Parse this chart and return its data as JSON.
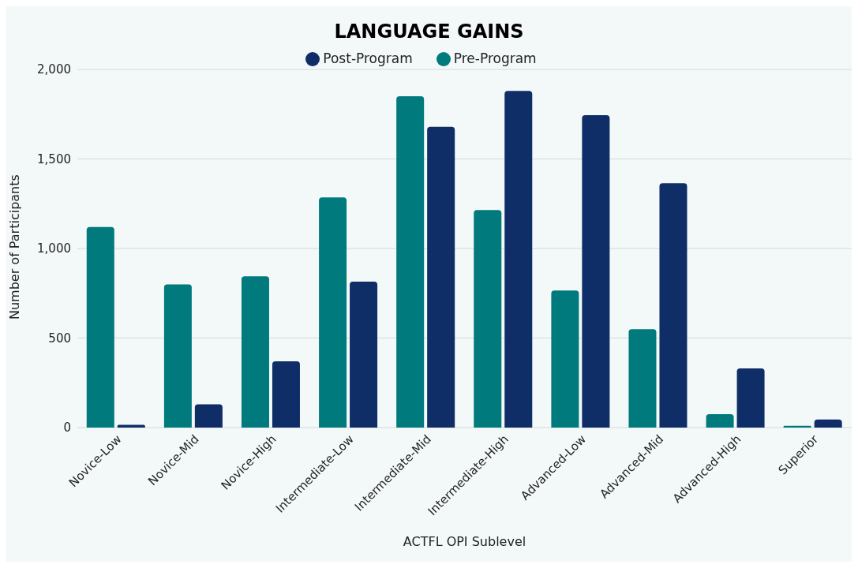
{
  "chart_data": {
    "type": "bar",
    "title": "LANGUAGE GAINS",
    "xlabel": "ACTFL OPI Sublevel",
    "ylabel": "Number of Participants",
    "categories": [
      "Novice-Low",
      "Novice-Mid",
      "Novice-High",
      "Intermediate-Low",
      "Intermediate-Mid",
      "Intermediate-High",
      "Advanced-Low",
      "Advanced-Mid",
      "Advanced-High",
      "Superior"
    ],
    "series": [
      {
        "name": "Pre-Program",
        "color": "#007a7c",
        "values": [
          1120,
          800,
          845,
          1285,
          1850,
          1215,
          765,
          550,
          75,
          10
        ]
      },
      {
        "name": "Post-Program",
        "color": "#0f2d66",
        "values": [
          15,
          130,
          370,
          815,
          1680,
          1880,
          1745,
          1365,
          330,
          45
        ]
      }
    ],
    "ylim": [
      0,
      2000
    ],
    "yticks": [
      0,
      {
        "value": 500,
        "label": "500"
      },
      {
        "value": 1000,
        "label": "1,000"
      },
      {
        "value": 1500,
        "label": "1,500"
      },
      {
        "value": 2000,
        "label": "2,000"
      }
    ],
    "grid": "y",
    "legend": "top"
  }
}
